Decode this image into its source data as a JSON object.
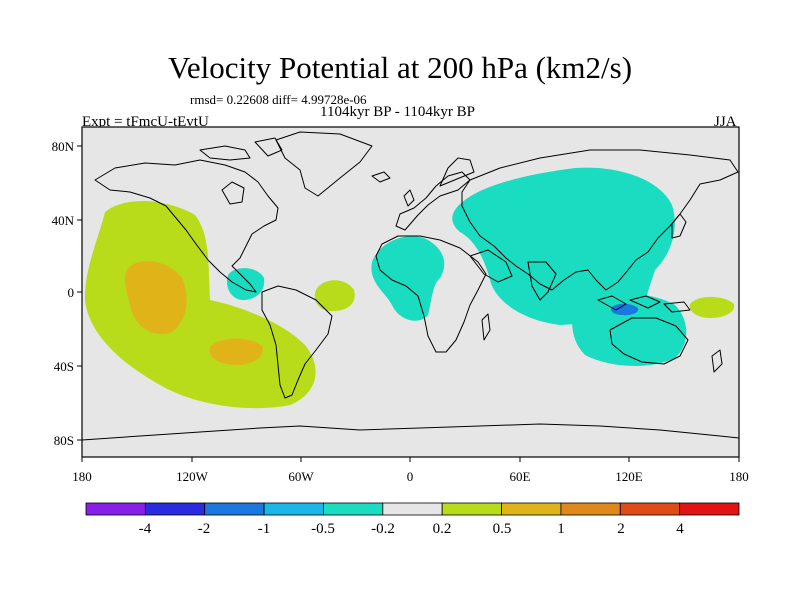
{
  "title": "Velocity Potential at 200 hPa (km2/s)",
  "stats": "rmsd= 0.22608 diff= 4.99728e-06",
  "period": "1104kyr BP - 1104kyr BP",
  "expt": "Expt = tFmcU-tEvtU",
  "season": "JJA",
  "map": {
    "projection": "cylindrical-equidistant",
    "lon_range": [
      -180,
      180
    ],
    "lat_range": [
      -90,
      90
    ],
    "ocean_color": "#e6e6e6",
    "coast_color": "#000000",
    "lon_ticks": [
      "180",
      "120W",
      "60W",
      "0",
      "60E",
      "120E",
      "180"
    ],
    "lat_ticks": [
      "80N",
      "40N",
      "0",
      "40S",
      "80S"
    ]
  },
  "colorbar": {
    "colors": [
      "#8a1de8",
      "#2a2ae0",
      "#1a78e0",
      "#19b8e8",
      "#19dcc0",
      "#e6e6e6",
      "#b8dc19",
      "#e0b419",
      "#e0881c",
      "#e04c16",
      "#e01414"
    ],
    "labels": [
      "-4",
      "-2",
      "-1",
      "-0.5",
      "-0.2",
      "0.2",
      "0.5",
      "1",
      "2",
      "4"
    ]
  },
  "regions": [
    {
      "name": "pacific-positive-lobe",
      "level_color": "#b8dc19"
    },
    {
      "name": "pacific-core-north",
      "level_color": "#e0b419"
    },
    {
      "name": "pacific-core-south",
      "level_color": "#e0b419"
    },
    {
      "name": "asia-negative-lobe",
      "level_color": "#19dcc0"
    },
    {
      "name": "africa-negative-lobe",
      "level_color": "#19dcc0"
    },
    {
      "name": "indian-ocean-negative-lobe",
      "level_color": "#19dcc0"
    },
    {
      "name": "maritime-continent-core",
      "level_color": "#1a78e0"
    }
  ]
}
